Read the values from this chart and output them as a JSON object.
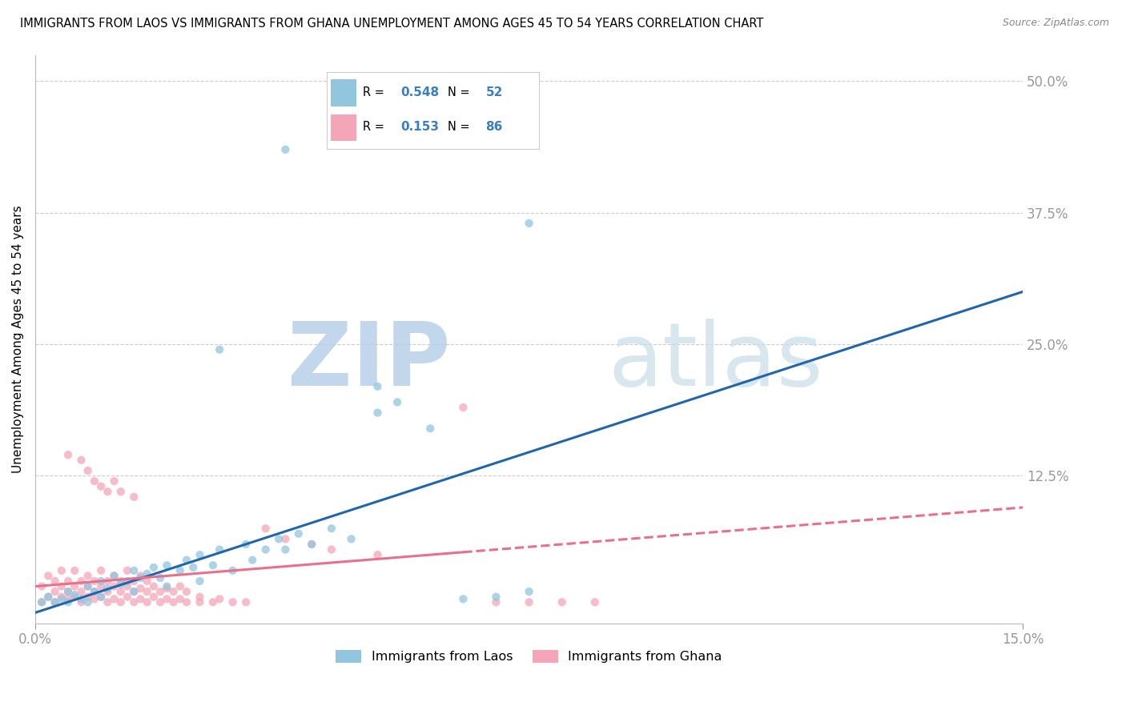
{
  "title": "IMMIGRANTS FROM LAOS VS IMMIGRANTS FROM GHANA UNEMPLOYMENT AMONG AGES 45 TO 54 YEARS CORRELATION CHART",
  "source": "Source: ZipAtlas.com",
  "ylabel": "Unemployment Among Ages 45 to 54 years",
  "ytick_labels": [
    "12.5%",
    "25.0%",
    "37.5%",
    "50.0%"
  ],
  "ytick_values": [
    0.125,
    0.25,
    0.375,
    0.5
  ],
  "xmin": 0.0,
  "xmax": 0.15,
  "ymin": -0.015,
  "ymax": 0.525,
  "laos_color": "#92c5de",
  "ghana_color": "#f4a6b8",
  "laos_line_color": "#2166ac",
  "ghana_line_color": "#e8708a",
  "laos_R": 0.548,
  "laos_N": 52,
  "ghana_R": 0.153,
  "ghana_N": 86,
  "laos_scatter": [
    [
      0.001,
      0.005
    ],
    [
      0.002,
      0.01
    ],
    [
      0.003,
      0.005
    ],
    [
      0.004,
      0.008
    ],
    [
      0.005,
      0.015
    ],
    [
      0.005,
      0.005
    ],
    [
      0.006,
      0.012
    ],
    [
      0.007,
      0.008
    ],
    [
      0.008,
      0.02
    ],
    [
      0.008,
      0.005
    ],
    [
      0.009,
      0.015
    ],
    [
      0.01,
      0.025
    ],
    [
      0.01,
      0.01
    ],
    [
      0.011,
      0.018
    ],
    [
      0.012,
      0.03
    ],
    [
      0.013,
      0.022
    ],
    [
      0.014,
      0.025
    ],
    [
      0.015,
      0.035
    ],
    [
      0.015,
      0.015
    ],
    [
      0.016,
      0.028
    ],
    [
      0.017,
      0.032
    ],
    [
      0.018,
      0.038
    ],
    [
      0.019,
      0.028
    ],
    [
      0.02,
      0.04
    ],
    [
      0.02,
      0.02
    ],
    [
      0.022,
      0.035
    ],
    [
      0.023,
      0.045
    ],
    [
      0.024,
      0.038
    ],
    [
      0.025,
      0.05
    ],
    [
      0.025,
      0.025
    ],
    [
      0.027,
      0.04
    ],
    [
      0.028,
      0.055
    ],
    [
      0.03,
      0.035
    ],
    [
      0.032,
      0.06
    ],
    [
      0.033,
      0.045
    ],
    [
      0.035,
      0.055
    ],
    [
      0.037,
      0.065
    ],
    [
      0.038,
      0.055
    ],
    [
      0.04,
      0.07
    ],
    [
      0.042,
      0.06
    ],
    [
      0.045,
      0.075
    ],
    [
      0.048,
      0.065
    ],
    [
      0.038,
      0.435
    ],
    [
      0.075,
      0.365
    ],
    [
      0.028,
      0.245
    ],
    [
      0.052,
      0.21
    ],
    [
      0.055,
      0.195
    ],
    [
      0.052,
      0.185
    ],
    [
      0.06,
      0.17
    ],
    [
      0.065,
      0.008
    ],
    [
      0.07,
      0.01
    ],
    [
      0.075,
      0.015
    ]
  ],
  "ghana_scatter": [
    [
      0.001,
      0.005
    ],
    [
      0.001,
      0.02
    ],
    [
      0.002,
      0.01
    ],
    [
      0.002,
      0.03
    ],
    [
      0.003,
      0.005
    ],
    [
      0.003,
      0.015
    ],
    [
      0.003,
      0.025
    ],
    [
      0.004,
      0.01
    ],
    [
      0.004,
      0.02
    ],
    [
      0.004,
      0.035
    ],
    [
      0.005,
      0.008
    ],
    [
      0.005,
      0.015
    ],
    [
      0.005,
      0.025
    ],
    [
      0.005,
      0.145
    ],
    [
      0.006,
      0.01
    ],
    [
      0.006,
      0.02
    ],
    [
      0.006,
      0.035
    ],
    [
      0.007,
      0.005
    ],
    [
      0.007,
      0.015
    ],
    [
      0.007,
      0.025
    ],
    [
      0.007,
      0.14
    ],
    [
      0.008,
      0.01
    ],
    [
      0.008,
      0.02
    ],
    [
      0.008,
      0.03
    ],
    [
      0.008,
      0.13
    ],
    [
      0.009,
      0.008
    ],
    [
      0.009,
      0.015
    ],
    [
      0.009,
      0.025
    ],
    [
      0.009,
      0.12
    ],
    [
      0.01,
      0.01
    ],
    [
      0.01,
      0.02
    ],
    [
      0.01,
      0.035
    ],
    [
      0.01,
      0.115
    ],
    [
      0.011,
      0.005
    ],
    [
      0.011,
      0.015
    ],
    [
      0.011,
      0.025
    ],
    [
      0.011,
      0.11
    ],
    [
      0.012,
      0.008
    ],
    [
      0.012,
      0.02
    ],
    [
      0.012,
      0.03
    ],
    [
      0.012,
      0.12
    ],
    [
      0.013,
      0.005
    ],
    [
      0.013,
      0.015
    ],
    [
      0.013,
      0.025
    ],
    [
      0.013,
      0.11
    ],
    [
      0.014,
      0.01
    ],
    [
      0.014,
      0.02
    ],
    [
      0.014,
      0.035
    ],
    [
      0.015,
      0.005
    ],
    [
      0.015,
      0.015
    ],
    [
      0.015,
      0.025
    ],
    [
      0.015,
      0.105
    ],
    [
      0.016,
      0.008
    ],
    [
      0.016,
      0.018
    ],
    [
      0.016,
      0.03
    ],
    [
      0.017,
      0.005
    ],
    [
      0.017,
      0.015
    ],
    [
      0.017,
      0.025
    ],
    [
      0.018,
      0.01
    ],
    [
      0.018,
      0.02
    ],
    [
      0.019,
      0.005
    ],
    [
      0.019,
      0.015
    ],
    [
      0.02,
      0.008
    ],
    [
      0.02,
      0.018
    ],
    [
      0.021,
      0.005
    ],
    [
      0.021,
      0.015
    ],
    [
      0.022,
      0.008
    ],
    [
      0.022,
      0.02
    ],
    [
      0.023,
      0.005
    ],
    [
      0.023,
      0.015
    ],
    [
      0.025,
      0.005
    ],
    [
      0.025,
      0.01
    ],
    [
      0.027,
      0.005
    ],
    [
      0.028,
      0.008
    ],
    [
      0.03,
      0.005
    ],
    [
      0.032,
      0.005
    ],
    [
      0.035,
      0.075
    ],
    [
      0.038,
      0.065
    ],
    [
      0.042,
      0.06
    ],
    [
      0.045,
      0.055
    ],
    [
      0.052,
      0.05
    ],
    [
      0.065,
      0.19
    ],
    [
      0.07,
      0.005
    ],
    [
      0.075,
      0.005
    ],
    [
      0.08,
      0.005
    ],
    [
      0.085,
      0.005
    ]
  ],
  "laos_trend": [
    0.0,
    0.15,
    -0.005,
    0.3
  ],
  "ghana_trend": [
    0.0,
    0.15,
    0.02,
    0.095
  ],
  "watermark_zip": "ZIP",
  "watermark_atlas": "atlas",
  "watermark_color": "#c8dff0",
  "grid_color": "#cccccc",
  "title_fontsize": 10.5,
  "axis_label_color": "#5b9bd5",
  "tick_label_color": "#5b9bd5",
  "legend_R_color": "black",
  "legend_val_color": "#3c7ebf"
}
